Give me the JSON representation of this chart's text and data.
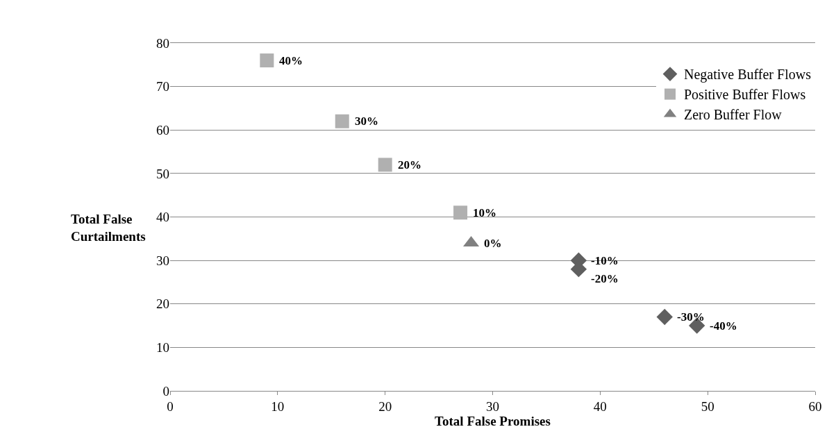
{
  "chart_data": {
    "type": "scatter",
    "xlabel": "Total False Promises",
    "ylabel": "Total False Curtailments",
    "xlim": [
      0,
      60
    ],
    "xticks": [
      0,
      10,
      20,
      30,
      40,
      50,
      60
    ],
    "ylim": [
      0,
      80
    ],
    "yticks": [
      0,
      10,
      20,
      30,
      40,
      50,
      60,
      70,
      80
    ],
    "grid": "y",
    "legend": "top right",
    "series": [
      {
        "name": "Negative Buffer Flows",
        "color": "#5f5f5f",
        "marker": "diamond",
        "x": [
          38,
          38,
          46,
          49
        ],
        "values": [
          30,
          28,
          17,
          15
        ]
      },
      {
        "name": "Positive Buffer Flows",
        "color": "#b0b0b0",
        "marker": "square",
        "x": [
          9,
          16,
          20,
          27
        ],
        "values": [
          76,
          62,
          52,
          41
        ]
      },
      {
        "name": "Zero Buffer Flow",
        "color": "#808080",
        "marker": "triangle",
        "x": [
          28
        ],
        "values": [
          34
        ]
      }
    ],
    "annotations": [
      {
        "text": "40%",
        "x": 9,
        "y": 76
      },
      {
        "text": "30%",
        "x": 16,
        "y": 62
      },
      {
        "text": "20%",
        "x": 20,
        "y": 52
      },
      {
        "text": "10%",
        "x": 27,
        "y": 41
      },
      {
        "text": "0%",
        "x": 28,
        "y": 34
      },
      {
        "text": "-10%",
        "x": 38,
        "y": 30
      },
      {
        "text": "-20%",
        "x": 38,
        "y": 28
      },
      {
        "text": "-30%",
        "x": 46,
        "y": 17
      },
      {
        "text": "-40%",
        "x": 49,
        "y": 15
      }
    ]
  }
}
